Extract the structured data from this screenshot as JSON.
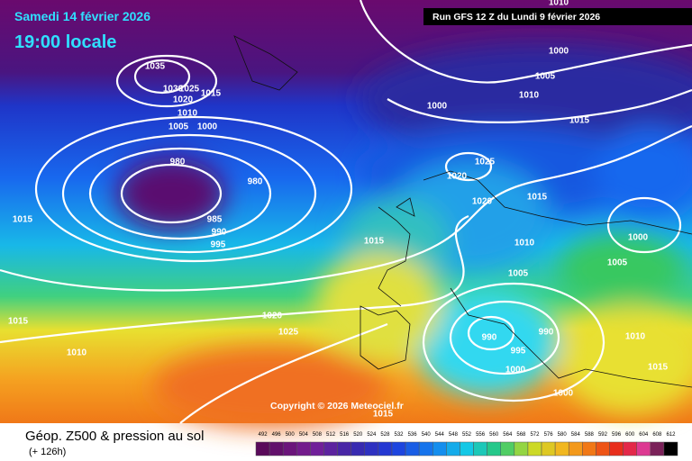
{
  "header": {
    "date": "Samedi 14 février 2026",
    "time": "19:00 locale",
    "run": "Run GFS 12 Z du Lundi 9 février 2026"
  },
  "map": {
    "isobar_labels": [
      1010,
      1035,
      1030,
      1025,
      1015,
      1020,
      1010,
      1005,
      1000,
      980,
      980,
      985,
      990,
      995,
      1015,
      1015,
      1010,
      1020,
      1025,
      1015,
      1000,
      1005,
      1010,
      1000,
      1015,
      1025,
      1020,
      1020,
      1015,
      1010,
      1000,
      1005,
      1005,
      990,
      990,
      995,
      1000,
      1010,
      1015,
      1000,
      1015
    ]
  },
  "copyright": "Copyright © 2026 Meteociel.fr",
  "footer": {
    "title": "Géop. Z500 & pression au sol",
    "lead": "(+ 126h)",
    "scale": [
      492,
      496,
      500,
      504,
      508,
      512,
      516,
      520,
      524,
      528,
      532,
      536,
      540,
      544,
      548,
      552,
      556,
      560,
      564,
      568,
      572,
      576,
      580,
      584,
      588,
      592,
      596,
      600,
      604,
      608,
      612
    ]
  }
}
